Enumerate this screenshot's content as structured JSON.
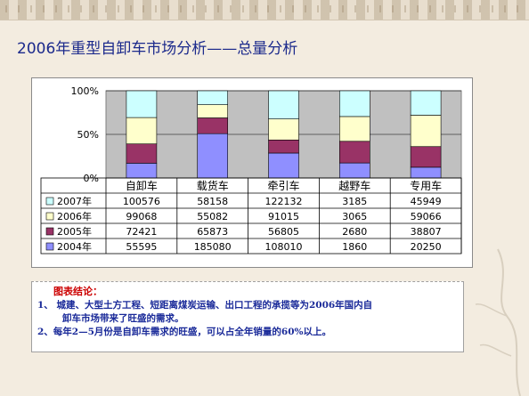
{
  "title": "2006年重型自卸车市场分析——总量分析",
  "chart_data": {
    "type": "bar",
    "stacking": "percent",
    "y_ticks": [
      "100%",
      "50%",
      "0%"
    ],
    "ylim": [
      0,
      100
    ],
    "grid": true,
    "categories": [
      "自卸车",
      "载货车",
      "牵引车",
      "越野车",
      "专用车"
    ],
    "series": [
      {
        "name": "2004年",
        "color": "#8f8fff",
        "values": [
          55595,
          185080,
          108010,
          1860,
          20250
        ]
      },
      {
        "name": "2005年",
        "color": "#993366",
        "values": [
          72421,
          65873,
          56805,
          2680,
          38807
        ]
      },
      {
        "name": "2006年",
        "color": "#ffffcc",
        "values": [
          99068,
          55082,
          91015,
          3065,
          59066
        ]
      },
      {
        "name": "2007年",
        "color": "#ccffff",
        "values": [
          100576,
          58158,
          122132,
          3185,
          45949
        ]
      }
    ],
    "table_row_order": [
      "2007年",
      "2006年",
      "2005年",
      "2004年"
    ],
    "table_values": [
      [
        "100576",
        "58158",
        "122132",
        "3185",
        "45949"
      ],
      [
        "99068",
        "55082",
        "91015",
        "3065",
        "59066"
      ],
      [
        "72421",
        "65873",
        "56805",
        "2680",
        "38807"
      ],
      [
        "55595",
        "185080",
        "108010",
        "1860",
        "20250"
      ]
    ],
    "plot_background": "#c0c0c0"
  },
  "conclusion": {
    "title": "图表结论：",
    "lines": [
      "1、 城建、大型土方工程、短距离煤炭运输、出口工程的承揽等为2006年国内自",
      "卸车市场带来了旺盛的需求。",
      "2、每年2—5月份是自卸车需求的旺盛，可以占全年销量的60%以上。"
    ]
  }
}
